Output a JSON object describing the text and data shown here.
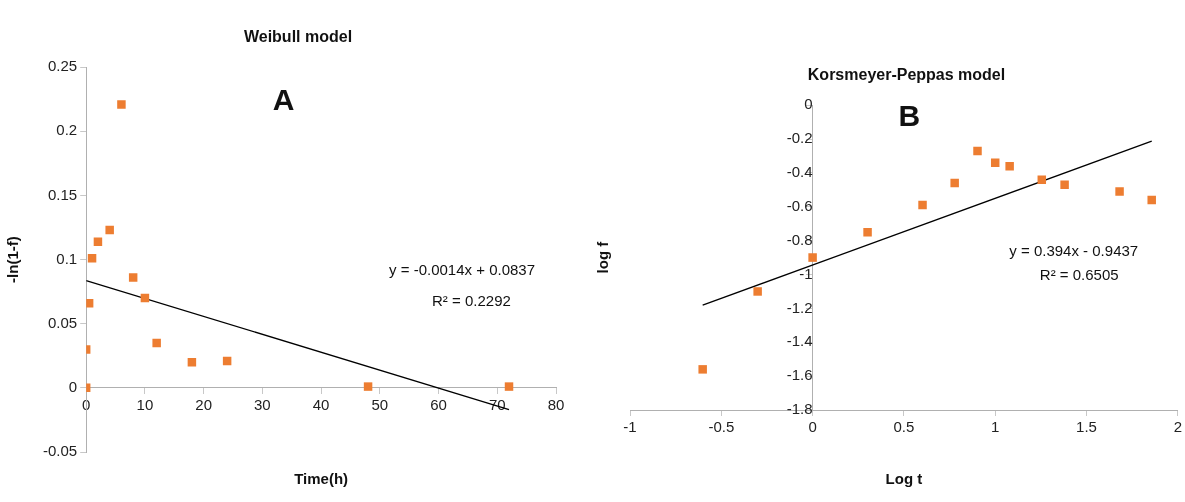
{
  "chart_data": [
    {
      "type": "scatter",
      "title": "Weibull model",
      "xlabel": "Time(h)",
      "ylabel": "-ln(1-f)",
      "xlim": [
        0,
        80
      ],
      "xticks": [
        0,
        10,
        20,
        30,
        40,
        50,
        60,
        70,
        80
      ],
      "ylim": [
        -0.05,
        0.25
      ],
      "yticks": [
        -0.05,
        0,
        0.05,
        0.1,
        0.15,
        0.2,
        0.25
      ],
      "grid": false,
      "legend": false,
      "annotations": [
        "A",
        "y = -0.0014x + 0.0837",
        "R² = 0.2292"
      ],
      "series": [
        {
          "type": "scatter",
          "marker": "square",
          "color": "#ed7d31",
          "x": [
            0,
            0,
            0.5,
            1,
            2,
            4,
            6,
            8,
            10,
            12,
            18,
            24,
            48,
            72
          ],
          "values": [
            0,
            0.03,
            0.066,
            0.101,
            0.114,
            0.123,
            0.221,
            0.086,
            0.07,
            0.035,
            0.02,
            0.021,
            0.001,
            0.001
          ]
        },
        {
          "type": "line",
          "marker": "none",
          "color": "#000000",
          "x": [
            0,
            72
          ],
          "values": [
            0.0837,
            -0.017
          ]
        }
      ]
    },
    {
      "type": "scatter",
      "title": "Korsmeyer-Peppas model",
      "xlabel": "Log t",
      "ylabel": "log f",
      "xlim": [
        -1,
        2
      ],
      "xticks": [
        -1,
        -0.5,
        0,
        0.5,
        1,
        1.5,
        2
      ],
      "ylim": [
        -1.8,
        0
      ],
      "yticks": [
        -1.8,
        -1.6,
        -1.4,
        -1.2,
        -1,
        -0.8,
        -0.6,
        -0.4,
        -0.2,
        0
      ],
      "grid": false,
      "legend": false,
      "annotations": [
        "B",
        "y = 0.394x - 0.9437",
        "R² = 0.6505"
      ],
      "series": [
        {
          "type": "scatter",
          "marker": "square",
          "color": "#ed7d31",
          "x": [
            -0.602,
            -0.301,
            0,
            0.301,
            0.602,
            0.778,
            0.903,
            1,
            1.079,
            1.255,
            1.38,
            1.681,
            1.857
          ],
          "values": [
            -1.56,
            -1.1,
            -0.9,
            -0.75,
            -0.59,
            -0.46,
            -0.27,
            -0.34,
            -0.36,
            -0.44,
            -0.47,
            -0.51,
            -0.56
          ]
        },
        {
          "type": "line",
          "marker": "none",
          "color": "#000000",
          "x": [
            -0.602,
            1.857
          ],
          "values": [
            -1.181,
            -0.212
          ]
        }
      ]
    }
  ]
}
